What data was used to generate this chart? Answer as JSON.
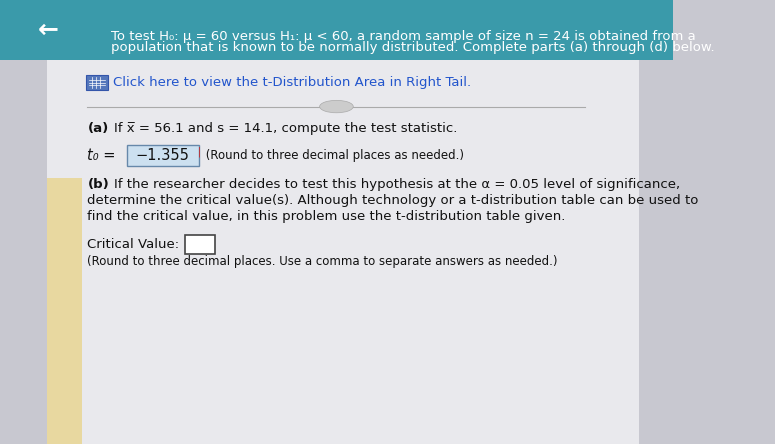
{
  "bg_color": "#c8c8d0",
  "panel_color": "#e9e9ed",
  "left_bar_color": "#e8d8a0",
  "header_bg": "#3a9aaa",
  "back_arrow": "←",
  "title_line1": "To test H₀: μ = 60 versus H₁: μ < 60, a random sample of size n = 24 is obtained from a",
  "title_line2": "population that is known to be normally distributed. Complete parts (a) through (d) below.",
  "link_text": "Click here to view the t-Distribution Area in Right Tail.",
  "part_a_label": "(a)",
  "part_a_text": "If x̅ = 56.1 and s = 14.1, compute the test statistic.",
  "t0_label": "t₀ =",
  "t0_value": "−1.355",
  "t0_suffix": " (Round to three decimal places as needed.)",
  "part_b_label": "(b)",
  "part_b_line1": "If the researcher decides to test this hypothesis at the α = 0.05 level of significance,",
  "part_b_line2": "determine the critical value(s). Although technology or a t-distribution table can be used to",
  "part_b_line3": "find the critical value, in this problem use the t-distribution table given.",
  "critical_label": "Critical Value:",
  "critical_suffix": "(Round to three decimal places. Use a comma to separate answers as needed.)",
  "font_size_body": 9.5,
  "font_size_small": 8.5,
  "text_color": "#111111",
  "link_color": "#2255cc",
  "highlight_bg": "#cce0f0"
}
